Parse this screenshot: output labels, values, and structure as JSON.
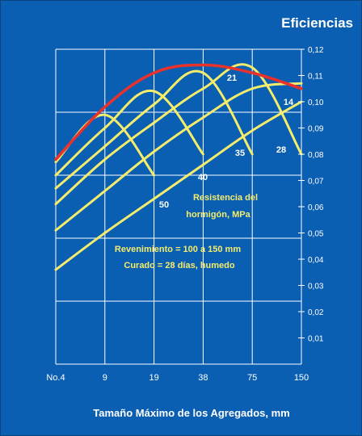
{
  "chart_data": {
    "type": "line",
    "title": "Eficiencias",
    "xlabel": "Tamaño Máximo de los Agregados, mm",
    "ylabel": "",
    "x_ticks": [
      "No.4",
      "9",
      "19",
      "38",
      "75",
      "150"
    ],
    "y_ticks": [
      "0,01",
      "0,02",
      "0,03",
      "0,04",
      "0,05",
      "0,06",
      "0,07",
      "0,08",
      "0,09",
      "0,10",
      "0,11",
      "0,12"
    ],
    "ylim": [
      0,
      0.12
    ],
    "grid": true,
    "series": [
      {
        "name": "14",
        "x": [
          "No.4",
          "9",
          "19",
          "38",
          "75",
          "150"
        ],
        "y": [
          0.036,
          0.05,
          0.063,
          0.076,
          0.089,
          0.1
        ],
        "color": "#f4ec6a"
      },
      {
        "name": "21",
        "x": [
          "No.4",
          "9",
          "19",
          "38",
          "75",
          "150"
        ],
        "y": [
          0.051,
          0.066,
          0.081,
          0.094,
          0.105,
          0.107
        ],
        "color": "#f4ec6a"
      },
      {
        "name": "28",
        "x": [
          "No.4",
          "9",
          "19",
          "38",
          "75",
          "150"
        ],
        "y": [
          0.061,
          0.078,
          0.092,
          0.105,
          0.113,
          0.08
        ],
        "color": "#f4ec6a"
      },
      {
        "name": "35",
        "x": [
          "No.4",
          "9",
          "19",
          "38",
          "75"
        ],
        "y": [
          0.067,
          0.083,
          0.099,
          0.111,
          0.08
        ],
        "color": "#f4ec6a"
      },
      {
        "name": "40",
        "x": [
          "No.4",
          "9",
          "19",
          "38"
        ],
        "y": [
          0.072,
          0.09,
          0.104,
          0.08
        ],
        "color": "#f4ec6a"
      },
      {
        "name": "50",
        "x": [
          "No.4",
          "9",
          "19"
        ],
        "y": [
          0.077,
          0.095,
          0.072
        ],
        "color": "#f4ec6a"
      },
      {
        "name": "",
        "x": [
          "No.4",
          "9",
          "19",
          "38",
          "75",
          "150"
        ],
        "y": [
          0.078,
          0.098,
          0.111,
          0.114,
          0.111,
          0.105
        ],
        "color": "#e8322b"
      }
    ],
    "annotations": [
      "Resistencia del",
      "hormigón,  MPa",
      "Revenimiento = 100 a 150 mm",
      "Curado = 28 días, humedo"
    ]
  }
}
